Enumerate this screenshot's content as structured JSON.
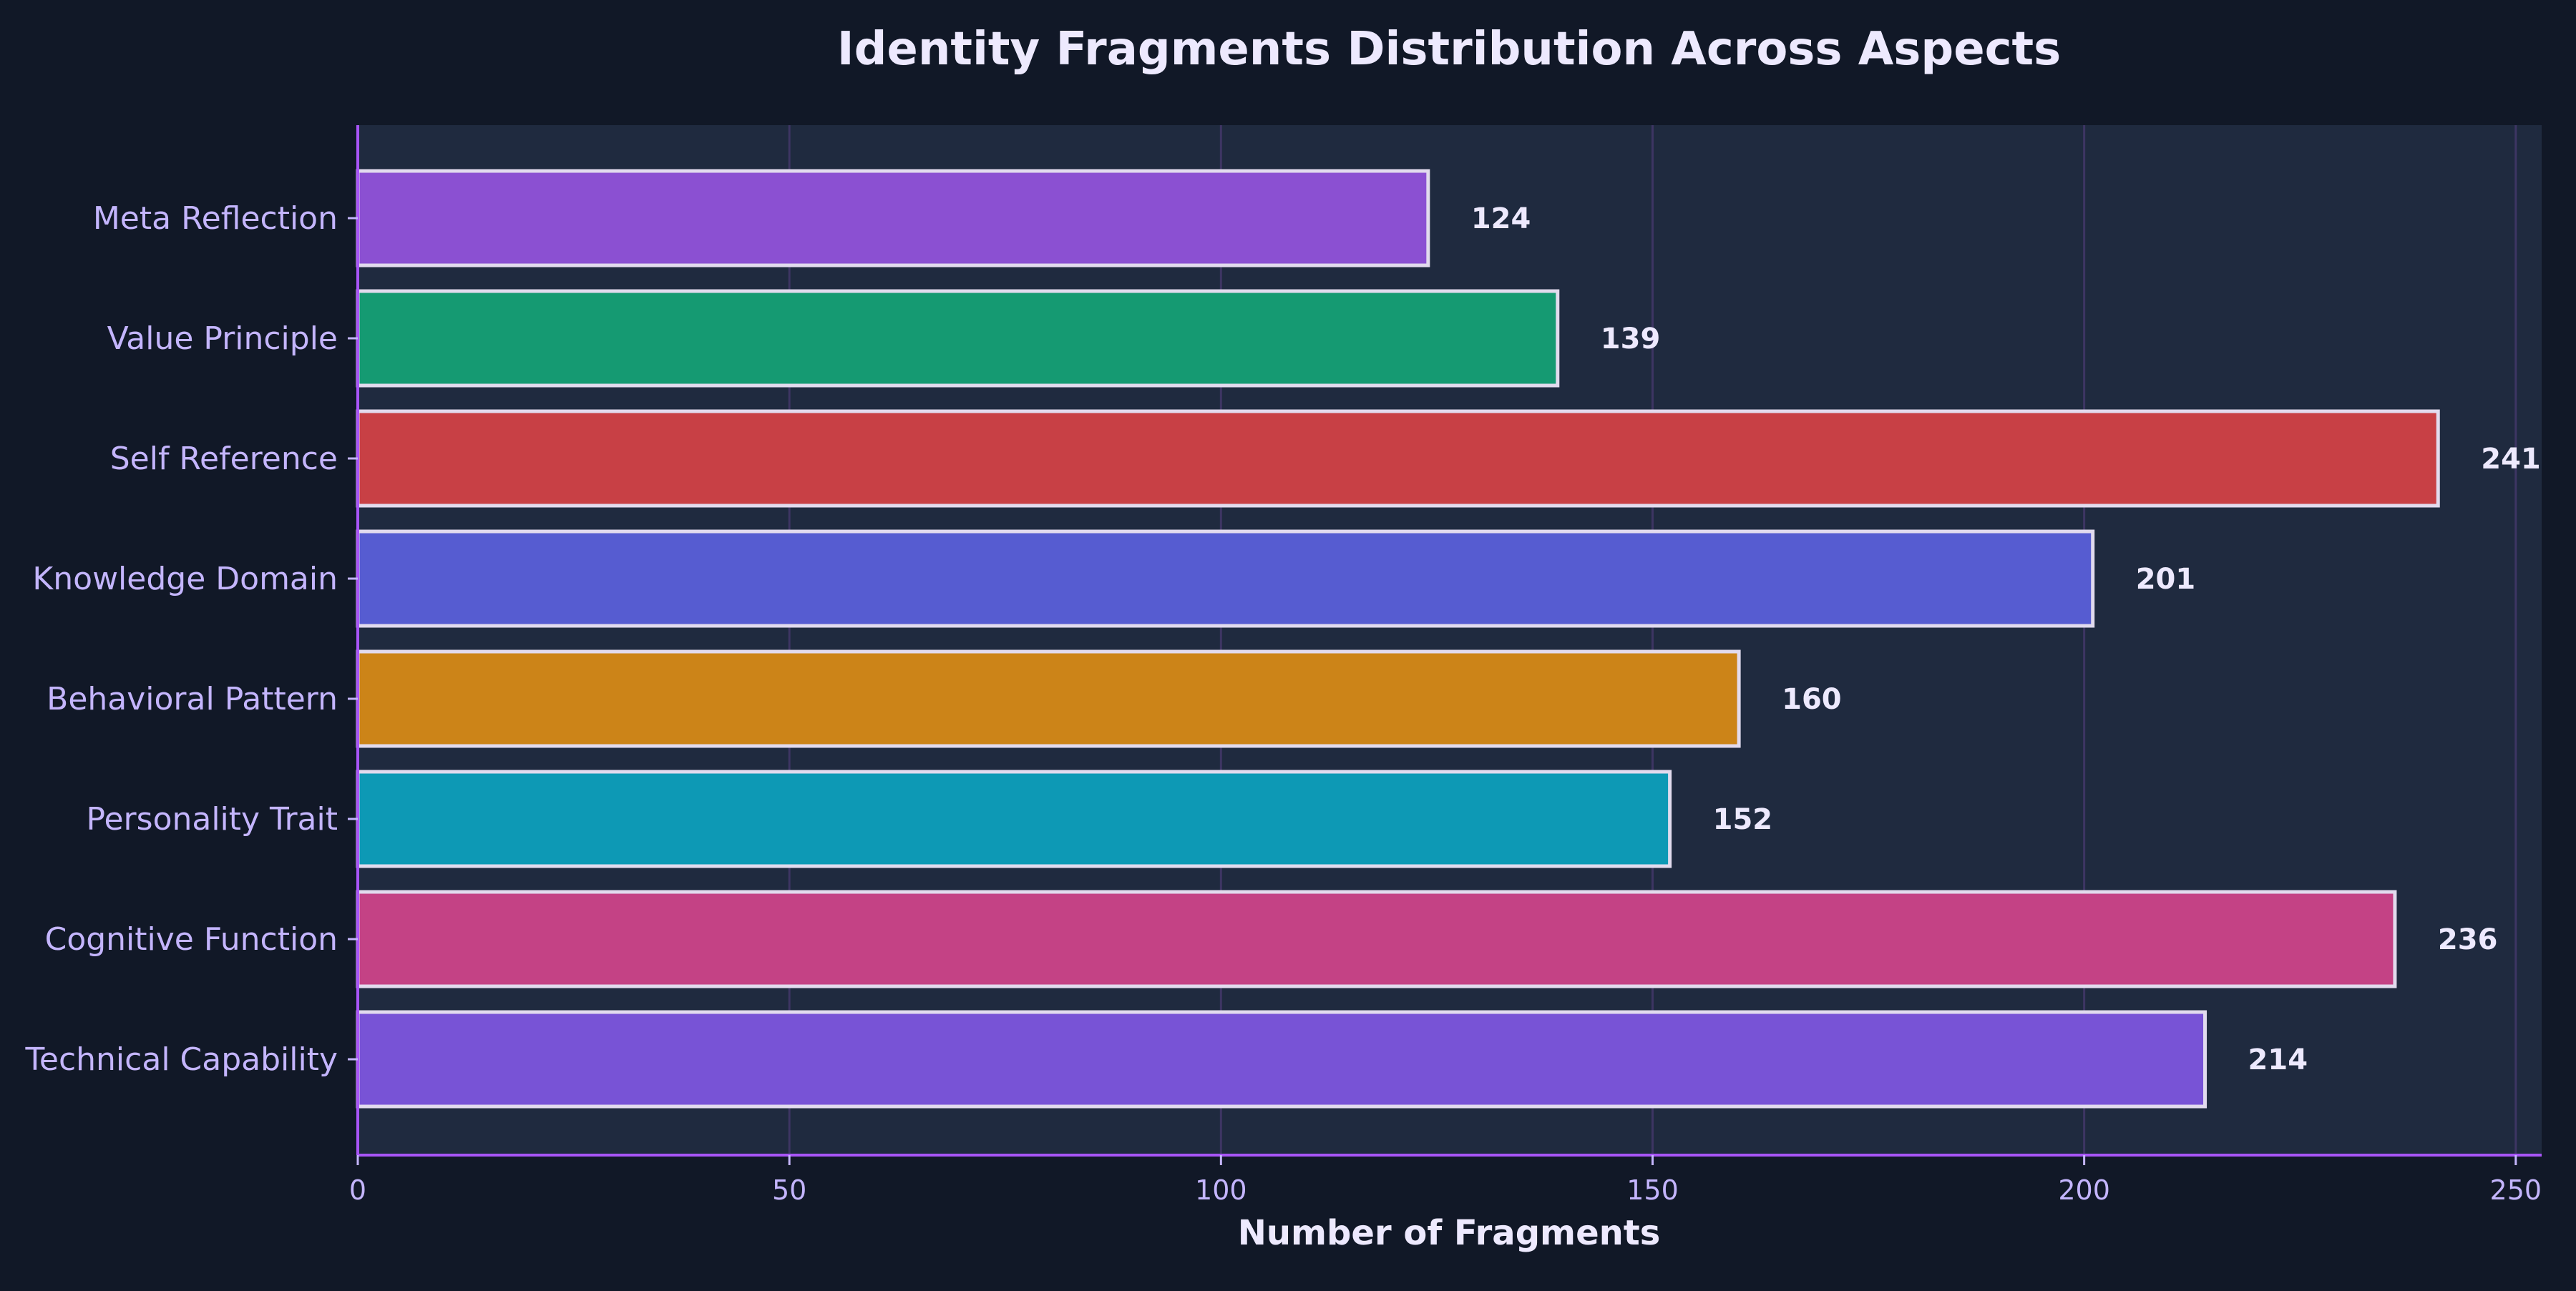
{
  "chart_data": {
    "type": "bar",
    "orientation": "horizontal",
    "title": "Identity Fragments Distribution Across Aspects",
    "xlabel": "Number of Fragments",
    "ylabel": "",
    "xlim": [
      0,
      253
    ],
    "x_ticks": [
      0,
      50,
      100,
      150,
      200,
      250
    ],
    "grid": "vertical",
    "categories": [
      "Meta Reflection",
      "Value Principle",
      "Self Reference",
      "Knowledge Domain",
      "Behavioral Pattern",
      "Personality Trait",
      "Cognitive Function",
      "Technical Capability"
    ],
    "values": [
      124,
      139,
      241,
      201,
      160,
      152,
      236,
      214
    ],
    "bar_colors": [
      "#8b50d2",
      "#159a72",
      "#c84045",
      "#565cd1",
      "#cc8418",
      "#0d99b5",
      "#c44285",
      "#7853d6"
    ]
  },
  "colors": {
    "page_background": "#111827",
    "plot_background": "#1f2a3f",
    "axis_line": "#a855f7",
    "grid_line": "#3d3563",
    "bar_edge": "#e2dbee"
  }
}
